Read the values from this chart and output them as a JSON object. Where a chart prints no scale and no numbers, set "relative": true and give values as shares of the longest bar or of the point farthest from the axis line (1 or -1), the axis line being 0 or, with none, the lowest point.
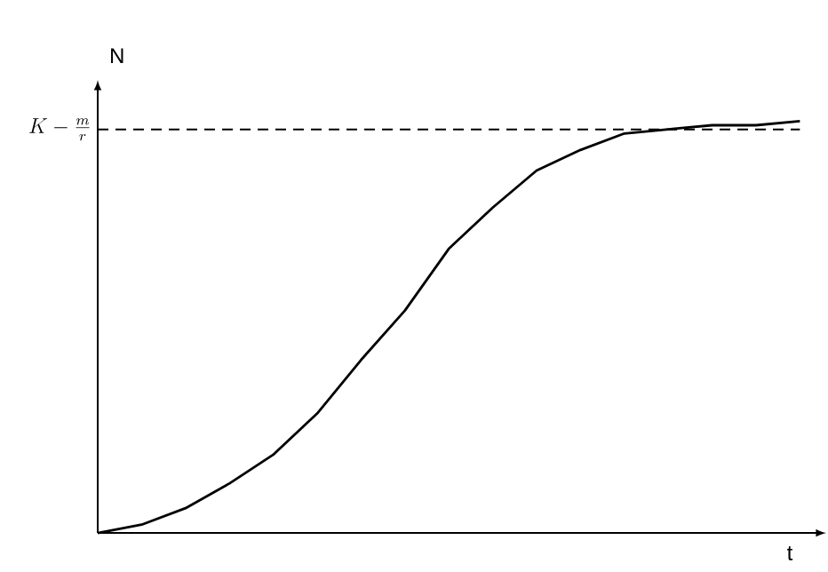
{
  "chart_data": {
    "type": "line",
    "relative": true,
    "xlabel": "t",
    "ylabel": "N",
    "categories": [
      null,
      null,
      null,
      null,
      null,
      null,
      null,
      null,
      null,
      null,
      null,
      null,
      null,
      null,
      null,
      null,
      null
    ],
    "series": [
      {
        "color": "#000000",
        "values": [
          0,
          0.02,
          0.06,
          0.12,
          0.19,
          0.29,
          0.42,
          0.54,
          0.69,
          0.79,
          0.88,
          0.93,
          0.97,
          0.98,
          0.99,
          0.99,
          1
        ]
      }
    ],
    "ref_lines": [
      {
        "axis": "y",
        "value": 0.98,
        "label": "K-\\frac{m}{r}",
        "line_style": "dashed"
      }
    ],
    "marker": "none",
    "line_style": "solid"
  }
}
